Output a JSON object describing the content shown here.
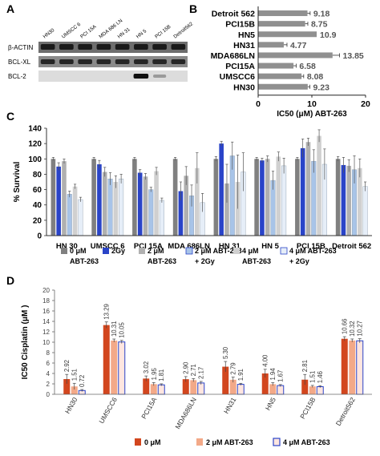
{
  "panels": {
    "A": {
      "letter": "A",
      "lanes": [
        "HN30",
        "UMSCC 6",
        "PCI 15A",
        "MDA 686 LN",
        "HN 31",
        "HN 5",
        "PCI 15B",
        "Detroit562"
      ],
      "rows": [
        "β-ACTIN",
        "BCL-XL",
        "BCL-2"
      ]
    },
    "B": {
      "letter": "B",
      "chart_data": {
        "type": "bar",
        "orientation": "horizontal",
        "categories": [
          "Detroit 562",
          "PCI15B",
          "HN5",
          "HN31",
          "MDA686LN",
          "PCI15A",
          "UMSCC6",
          "HN30"
        ],
        "values": [
          9.18,
          8.75,
          10.9,
          4.77,
          13.85,
          6.58,
          8.08,
          9.23
        ],
        "value_labels": [
          "9.18",
          "8.75",
          "10.9",
          "4.77",
          "13.85",
          "6.58",
          "8.08",
          "9.23"
        ],
        "errors": [
          0.5,
          0.5,
          0.0,
          0.6,
          1.3,
          0.5,
          0.4,
          0.4
        ],
        "xlim": [
          0,
          20
        ],
        "xticks": [
          "0",
          "10",
          "20"
        ],
        "xlabel": "IC50 (μM) ABT-263",
        "color": "#909090"
      }
    },
    "C": {
      "letter": "C",
      "chart_data": {
        "type": "bar",
        "categories": [
          "HN 30",
          "UMSCC 6",
          "PCI 15A",
          "MDA 686LN",
          "HN 31",
          "HN 5",
          "PCI 15B",
          "Detroit 562"
        ],
        "ylabel": "% Survival",
        "ylim": [
          0,
          140
        ],
        "yticks": [
          "0",
          "20",
          "40",
          "60",
          "80",
          "100",
          "120",
          "140"
        ],
        "series": [
          {
            "values": [
              100,
              100,
              100,
              100,
              100,
              100,
              100,
              100
            ],
            "errors": [
              2,
              2,
              2,
              2,
              3,
              2,
              2,
              3
            ],
            "color": "#808080"
          },
          {
            "values": [
              90,
              93,
              82,
              58,
              120,
              98,
              114,
              92
            ],
            "errors": [
              5,
              5,
              4,
              12,
              3,
              3,
              12,
              10
            ],
            "color": "#2a44c8"
          },
          {
            "values": [
              97,
              83,
              77,
              78,
              68,
              100,
              122,
              91
            ],
            "errors": [
              3,
              6,
              4,
              12,
              25,
              4,
              5,
              8
            ],
            "color": "#b0b0b0"
          },
          {
            "values": [
              54,
              74,
              60,
              52,
              104,
              72,
              97,
              86
            ],
            "errors": [
              4,
              8,
              3,
              14,
              18,
              12,
              15,
              18
            ],
            "color": "#a8c4e8"
          },
          {
            "values": [
              64,
              70,
              84,
              88,
              70,
              103,
              130,
              88
            ],
            "errors": [
              3,
              8,
              5,
              20,
              35,
              6,
              8,
              12
            ],
            "color": "#d0d0d0"
          },
          {
            "values": [
              47,
              74,
              46,
              43,
              83,
              91,
              93,
              64
            ],
            "errors": [
              3,
              6,
              3,
              12,
              25,
              10,
              20,
              6
            ],
            "color": "#e6eef8"
          }
        ],
        "legend": {
          "placement": "bottom",
          "entries": [
            {
              "line1": "0 μM",
              "line2": "ABT-263"
            },
            {
              "line1": "2Gy",
              "line2": ""
            },
            {
              "line1": "2 μM",
              "line2": "ABT-263"
            },
            {
              "line1": "2 μM ABT-263",
              "line2": "+ 2Gy"
            },
            {
              "line1": "4 μM",
              "line2": "ABT-263"
            },
            {
              "line1": "4 μM ABT-263",
              "line2": "+ 2Gy"
            }
          ]
        }
      }
    },
    "D": {
      "letter": "D",
      "chart_data": {
        "type": "bar",
        "categories": [
          "HN30",
          "UMSCC6",
          "PCI15A",
          "MDA686LN",
          "HN31",
          "HN5",
          "PCI15B",
          "Detroit562"
        ],
        "ylabel": "IC50 Cisplatin (μM )",
        "ylim": [
          0,
          20
        ],
        "yticks": [
          "0",
          "2",
          "4",
          "6",
          "8",
          "10",
          "12",
          "14",
          "16",
          "18",
          "20"
        ],
        "series": [
          {
            "name": "0 μM",
            "values": [
              2.92,
              13.29,
              3.02,
              2.9,
              5.3,
              4.0,
              2.81,
              10.66
            ],
            "labels": [
              "2.92",
              "13.29",
              "3.02",
              "2.90",
              "5.30",
              "4.00",
              "2.81",
              "10.66"
            ],
            "errors": [
              0.9,
              0.6,
              0.5,
              0.5,
              1.0,
              0.8,
              1.0,
              0.4
            ],
            "color": "#d2461e"
          },
          {
            "name": "2 μM ABT-263",
            "values": [
              1.51,
              10.31,
              1.95,
              2.71,
              2.79,
              1.94,
              1.51,
              10.32
            ],
            "labels": [
              "1.51",
              "10.31",
              "1.95",
              "2.71",
              "2.79",
              "1.94",
              "1.51",
              "10.32"
            ],
            "errors": [
              0.6,
              0.3,
              0.3,
              0.3,
              0.5,
              0.3,
              0.2,
              0.3
            ],
            "color": "#f3a988"
          },
          {
            "name": "4 μM ABT-263",
            "values": [
              0.72,
              10.05,
              1.81,
              2.17,
              1.91,
              1.67,
              1.46,
              10.27
            ],
            "labels": [
              "0.72",
              "10.05",
              "1.81",
              "2.17",
              "1.91",
              "1.67",
              "1.46",
              "10.27"
            ],
            "errors": [
              0.2,
              0.3,
              0.2,
              0.3,
              0.2,
              0.2,
              0.2,
              0.4
            ],
            "color": "#ffe6e0",
            "edge": "#2a44c8"
          }
        ],
        "legend": {
          "placement": "bottom"
        }
      }
    }
  }
}
